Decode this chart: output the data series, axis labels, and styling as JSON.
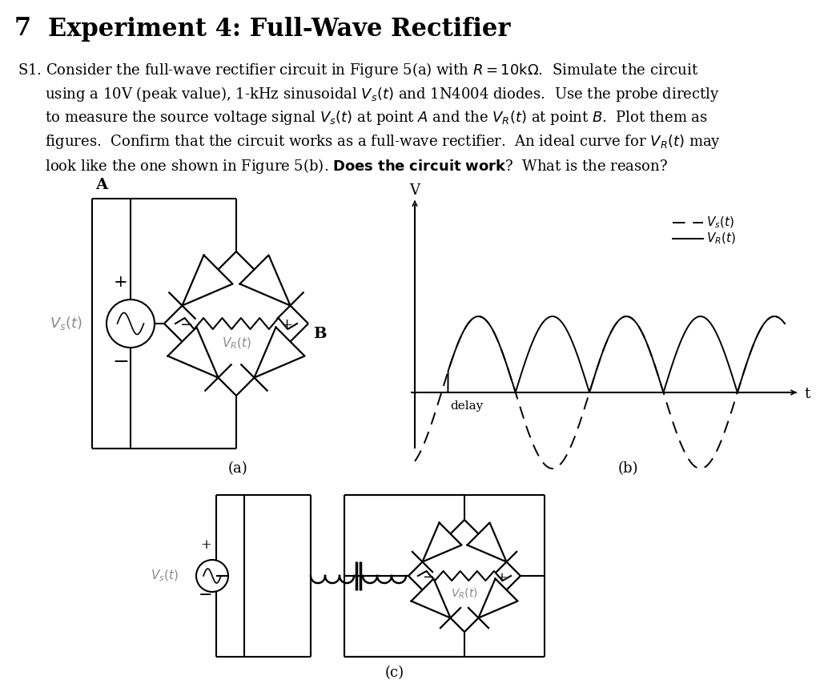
{
  "background": "#ffffff",
  "title_num": "7",
  "title_text": "Experiment 4: Full-Wave Rectifier",
  "line1": "S1. Consider the full-wave rectifier circuit in Figure 5(a) with $R = 10\\mathrm{k}\\Omega$. Simulate the circuit",
  "line2": "      using a 10V (peak value), 1-kHz sinusoidal $V_s(t)$ and 1N4004 diodes.  Use the probe directly",
  "line3": "      to measure the source voltage signal $V_s(t)$ at point $A$ and the $V_R(t)$ at point $B$. Plot them as",
  "line4": "      figures. Confirm that the circuit works as a full-wave rectifier.  An ideal curve for $V_R(t)$ may",
  "line5": "      look like the one shown in Figure 5(b). \\textbf{Does the circuit work}? What is the reason?",
  "fig_a": "(a)",
  "fig_b": "(b)",
  "fig_c": "(c)"
}
